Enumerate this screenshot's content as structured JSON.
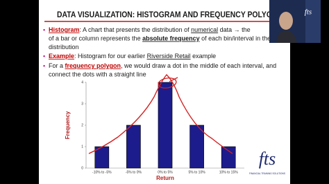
{
  "slide": {
    "title": "DATA VISUALIZATION: HISTOGRAM AND FREQUENCY POLYGO",
    "bullets": [
      [
        [
          "Histogram",
          ": A chart that presents the distribution of ",
          "numerical",
          " data → the"
        ],
        [
          "of a bar or column represents the ",
          "absolute frequency",
          " of each bin/interval in the"
        ],
        [
          "distribution"
        ]
      ],
      [
        [
          "Example",
          ": Histogram for our earlier ",
          "Riverside Retail",
          " example"
        ]
      ],
      [
        [
          "For a ",
          "frequency polygon",
          ", we would draw a dot in the middle of each interval, and"
        ],
        [
          "connect the dots with a straight line"
        ]
      ]
    ],
    "logo": {
      "brand": "fts",
      "tagline": "FINANCIAL TRAINING SOLUTIONS"
    },
    "webcam_logo": "fts"
  },
  "chart_data": {
    "type": "bar",
    "categories": [
      "-10% to -5%",
      "-5% to 0%",
      "0% to 5%",
      "5% to 10%",
      "10% to 15%"
    ],
    "values": [
      1,
      2,
      4,
      2,
      1
    ],
    "color": "#1c1c8c",
    "x_label": "Return",
    "y_label": "Frequency",
    "ylim": [
      0,
      4
    ],
    "yticks": [
      0,
      1,
      2,
      3,
      4
    ],
    "grid": false
  }
}
